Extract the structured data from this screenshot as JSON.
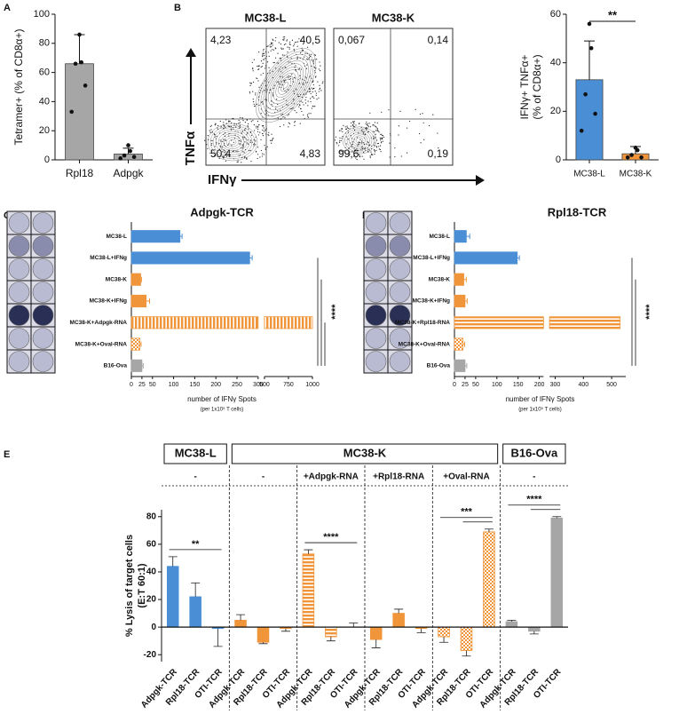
{
  "chart_data": [
    {
      "type": "bar",
      "panel": "A",
      "categories": [
        "Rpl18",
        "Adpgk"
      ],
      "values": [
        66,
        4
      ],
      "errors": [
        20,
        4
      ],
      "points": [
        [
          86,
          67,
          66,
          51,
          33
        ],
        [
          10,
          6,
          3,
          2,
          1
        ]
      ],
      "color": "#a6a6a6",
      "ylabel": [
        "Tetramer+ (% of CD8α+)"
      ],
      "ylim": [
        0,
        100
      ],
      "yticks": [
        0,
        20,
        40,
        60,
        80,
        100
      ]
    },
    {
      "type": "flow",
      "panel": "B",
      "title": "MC38-L",
      "quadrant_labels": [
        "4,23",
        "40,5",
        "50,4",
        "4,83"
      ],
      "ylabel": "TNFα",
      "xlabel": "IFNγ"
    },
    {
      "type": "flow",
      "title": "MC38-K",
      "quadrant_labels": [
        "0,067",
        "0,14",
        "99,6",
        "0,19"
      ]
    },
    {
      "type": "bar",
      "categories": [
        "MC38-L",
        "MC38-K"
      ],
      "values": [
        33,
        2.5
      ],
      "errors": [
        16,
        3
      ],
      "points": [
        [
          56,
          46,
          27,
          19,
          12
        ],
        [
          5,
          4,
          2,
          1,
          1
        ]
      ],
      "colors": [
        "#4a8fd6",
        "#f0953a"
      ],
      "ylabel": [
        "IFNγ+ TNFα+",
        "(% of CD8α+)"
      ],
      "ylim": [
        0,
        60
      ],
      "yticks": [
        0,
        20,
        40,
        60
      ],
      "significance": [
        {
          "label": "**",
          "between": [
            "MC38-L",
            "MC38-K"
          ]
        }
      ]
    },
    {
      "type": "hbar",
      "panel": "C",
      "title": "Adpgk-TCR",
      "categories": [
        "MC38-L",
        "MC38-L+IFNg",
        "MC38-K",
        "MC38-K+IFNg",
        "MC38-K+Adpgk-RNA",
        "MC38-K+Oval-RNA",
        "B16-Ova"
      ],
      "values": [
        115,
        280,
        22,
        35,
        1000,
        20,
        25
      ],
      "errors": [
        5,
        6,
        2,
        8,
        null,
        3,
        3
      ],
      "colors": [
        "#4a8fd6",
        "#4a8fd6",
        "#f0953a",
        "#f0953a",
        "#f0953a",
        "#f0953a",
        "#a6a6a6"
      ],
      "patterns": [
        "solid",
        "solid",
        "solid",
        "solid",
        "stripes-v",
        "checks",
        "solid"
      ],
      "xlim": [
        0,
        1000
      ],
      "xbreak": [
        300,
        500
      ],
      "xticks": [
        0,
        25,
        50,
        100,
        150,
        200,
        250,
        300,
        500,
        750,
        1000
      ],
      "xlabel": "number of IFNγ Spots",
      "xlabel_sub": "(per 1x10⁵ T cells)",
      "significance": [
        {
          "label": "****",
          "between": [
            "MC38-L+IFNg",
            "B16-Ova"
          ]
        },
        {
          "between": [
            "MC38-K",
            "B16-Ova"
          ]
        },
        {
          "between": [
            "MC38-K+Adpgk-RNA",
            "B16-Ova"
          ]
        }
      ]
    },
    {
      "type": "hbar",
      "panel": "D",
      "title": "Rpl18-TCR",
      "categories": [
        "MC38-L",
        "MC38-L+IFNg",
        "MC38-K",
        "MC38-K+IFNg",
        "MC38-K+Rpl18-RNA",
        "MC38-K+Oval-RNA",
        "B16-Ova"
      ],
      "values": [
        28,
        148,
        22,
        25,
        530,
        20,
        25
      ],
      "errors": [
        8,
        5,
        6,
        5,
        null,
        4,
        4
      ],
      "colors": [
        "#4a8fd6",
        "#4a8fd6",
        "#f0953a",
        "#f0953a",
        "#f0953a",
        "#f0953a",
        "#a6a6a6"
      ],
      "patterns": [
        "solid",
        "solid",
        "solid",
        "solid",
        "stripes-h",
        "checks",
        "solid"
      ],
      "xlim": [
        0,
        550
      ],
      "xbreak": [
        210,
        280
      ],
      "xticks": [
        0,
        25,
        50,
        100,
        150,
        200,
        300,
        400,
        500
      ],
      "xlabel": "number of IFNγ Spots",
      "xlabel_sub": "(per 1x10⁵ T cells)",
      "significance": [
        {
          "label": "****",
          "between": [
            "MC38-L+IFNg",
            "B16-Ova"
          ]
        },
        {
          "between": [
            "MC38-K",
            "B16-Ova"
          ]
        }
      ]
    },
    {
      "type": "groupbar",
      "panel": "E",
      "ylabel": [
        "% Lysis of target cells",
        "(E:T 60:1)"
      ],
      "ylim": [
        -25,
        85
      ],
      "yticks": [
        -20,
        0,
        20,
        40,
        60,
        80
      ],
      "panels": [
        {
          "label": "MC38-L",
          "conditions": [
            {
              "label": "-",
              "categories": [
                "Adpgk-TCR",
                "Rpl18-TCR",
                "OTI-TCR"
              ],
              "values": [
                44,
                22,
                -1
              ],
              "errors": [
                7,
                10,
                13
              ],
              "colors": [
                "#4a8fd6",
                "#4a8fd6",
                "#4a8fd6"
              ],
              "patterns": [
                "solid",
                "solid",
                "solid"
              ],
              "significance": [
                {
                  "label": "**",
                  "between": [
                    "Adpgk-TCR",
                    "OTI-TCR"
                  ]
                }
              ]
            }
          ]
        },
        {
          "label": "MC38-K",
          "conditions": [
            {
              "label": "-",
              "categories": [
                "Adpgk-TCR",
                "Rpl18-TCR",
                "OTI-TCR"
              ],
              "values": [
                5,
                -11,
                -1
              ],
              "errors": [
                4,
                1,
                2
              ],
              "colors": [
                "#f0953a",
                "#f0953a",
                "#f0953a"
              ],
              "patterns": [
                "solid",
                "solid",
                "solid"
              ]
            },
            {
              "label": "+Adpgk-RNA",
              "categories": [
                "Adpgk-TCR",
                "Rpl18-TCR",
                "OTI-TCR"
              ],
              "values": [
                53,
                -7,
                0
              ],
              "errors": [
                3,
                3,
                3
              ],
              "colors": [
                "#f0953a",
                "#f0953a",
                "#f0953a"
              ],
              "patterns": [
                "stripes-h",
                "stripes-h",
                "stripes-h"
              ],
              "significance": [
                {
                  "label": "****",
                  "between": [
                    "Adpgk-TCR",
                    "OTI-TCR"
                  ]
                }
              ]
            },
            {
              "label": "+Rpl18-RNA",
              "categories": [
                "Adpgk-TCR",
                "Rpl18-TCR",
                "OTI-TCR"
              ],
              "values": [
                -9,
                10,
                -1
              ],
              "errors": [
                6,
                3,
                3
              ],
              "colors": [
                "#f0953a",
                "#f0953a",
                "#f0953a"
              ],
              "patterns": [
                "solid",
                "solid",
                "solid"
              ]
            },
            {
              "label": "+Oval-RNA",
              "categories": [
                "Adpgk-TCR",
                "Rpl18-TCR",
                "OTI-TCR"
              ],
              "values": [
                -7,
                -17,
                69
              ],
              "errors": [
                4,
                4,
                2
              ],
              "colors": [
                "#f0953a",
                "#f0953a",
                "#f0953a"
              ],
              "patterns": [
                "checks",
                "checks",
                "checks"
              ],
              "significance": [
                {
                  "label": "***",
                  "between": [
                    "Adpgk-TCR",
                    "OTI-TCR"
                  ]
                },
                {
                  "between": [
                    "Rpl18-TCR",
                    "OTI-TCR"
                  ]
                }
              ]
            }
          ]
        },
        {
          "label": "B16-Ova",
          "conditions": [
            {
              "label": "-",
              "categories": [
                "Adpgk-TCR",
                "Rpl18-TCR",
                "OTI-TCR"
              ],
              "values": [
                4,
                -3,
                79
              ],
              "errors": [
                1,
                2,
                1
              ],
              "colors": [
                "#a6a6a6",
                "#a6a6a6",
                "#a6a6a6"
              ],
              "patterns": [
                "solid",
                "solid",
                "solid"
              ],
              "significance": [
                {
                  "label": "****",
                  "between": [
                    "Adpgk-TCR",
                    "OTI-TCR"
                  ]
                },
                {
                  "between": [
                    "Rpl18-TCR",
                    "OTI-TCR"
                  ]
                }
              ]
            }
          ]
        }
      ]
    }
  ]
}
